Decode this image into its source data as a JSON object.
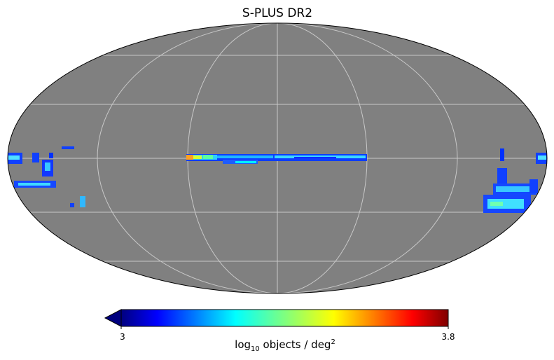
{
  "map": {
    "title": "S-PLUS DR2",
    "projection": "mollweide",
    "background_color": "#808080",
    "graticule": true,
    "graticule_color": "#c8c8c8"
  },
  "colorbar": {
    "colormap": "jet",
    "min": 3,
    "max": 3.8,
    "min_label": "3",
    "max_label": "3.8",
    "label_main": "log",
    "label_sub": "10",
    "label_mid": " objects / deg",
    "label_sup": "2",
    "extend": "min"
  }
}
